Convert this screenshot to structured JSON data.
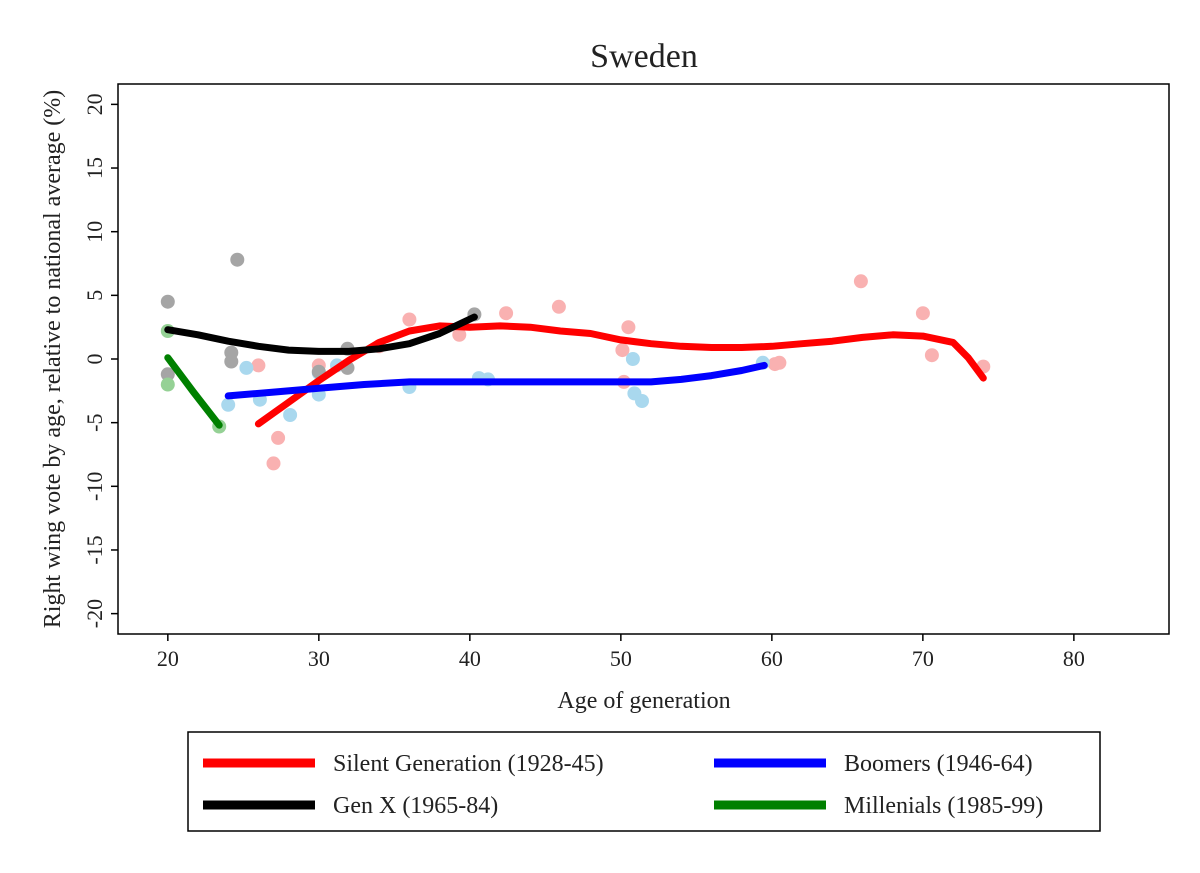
{
  "chart_data": {
    "type": "scatter",
    "title": "Sweden",
    "xlabel": "Age of generation",
    "ylabel": "Right wing vote by age, relative to national average (%)",
    "xlim": [
      16.7,
      86.3
    ],
    "ylim": [
      -21.6,
      21.6
    ],
    "x_ticks": [
      "20",
      "30",
      "40",
      "50",
      "60",
      "70",
      "80"
    ],
    "y_ticks": [
      "-20",
      "-15",
      "-10",
      "-5",
      "0",
      "5",
      "10",
      "15",
      "20"
    ],
    "grid": false,
    "legend_placement": "bottom",
    "series": [
      {
        "name": "Silent Generation (1928-45)",
        "color": "#ff0000",
        "point_color": "#f9b1b1",
        "points": [
          [
            26.0,
            -0.5
          ],
          [
            27.0,
            -8.2
          ],
          [
            27.3,
            -6.2
          ],
          [
            30.0,
            -0.5
          ],
          [
            34.0,
            1.0
          ],
          [
            36.0,
            3.1
          ],
          [
            39.3,
            1.9
          ],
          [
            42.4,
            3.6
          ],
          [
            45.9,
            4.1
          ],
          [
            50.1,
            0.7
          ],
          [
            50.5,
            2.5
          ],
          [
            50.2,
            -1.8
          ],
          [
            60.2,
            -0.4
          ],
          [
            60.5,
            -0.3
          ],
          [
            65.9,
            6.1
          ],
          [
            70.0,
            3.6
          ],
          [
            70.6,
            0.3
          ],
          [
            74.0,
            -0.6
          ]
        ],
        "fit": [
          [
            26.0,
            -5.1
          ],
          [
            28.0,
            -3.4
          ],
          [
            30.0,
            -1.7
          ],
          [
            32.0,
            -0.1
          ],
          [
            34.0,
            1.3
          ],
          [
            36.0,
            2.2
          ],
          [
            38.0,
            2.6
          ],
          [
            40.0,
            2.5
          ],
          [
            42.0,
            2.6
          ],
          [
            44.0,
            2.5
          ],
          [
            46.0,
            2.2
          ],
          [
            48.0,
            2.0
          ],
          [
            50.0,
            1.5
          ],
          [
            52.0,
            1.2
          ],
          [
            54.0,
            1.0
          ],
          [
            56.0,
            0.9
          ],
          [
            58.0,
            0.9
          ],
          [
            60.0,
            1.0
          ],
          [
            62.0,
            1.2
          ],
          [
            64.0,
            1.4
          ],
          [
            66.0,
            1.7
          ],
          [
            68.0,
            1.9
          ],
          [
            70.0,
            1.8
          ],
          [
            72.0,
            1.3
          ],
          [
            73.0,
            0.1
          ],
          [
            74.0,
            -1.5
          ]
        ]
      },
      {
        "name": "Boomers (1946-64)",
        "color": "#0000ff",
        "point_color": "#a9d8ee",
        "points": [
          [
            24.0,
            -3.6
          ],
          [
            25.2,
            -0.7
          ],
          [
            26.1,
            -3.2
          ],
          [
            28.1,
            -4.4
          ],
          [
            30.0,
            -2.8
          ],
          [
            30.0,
            -1.1
          ],
          [
            31.2,
            -0.5
          ],
          [
            36.0,
            -2.2
          ],
          [
            40.6,
            -1.5
          ],
          [
            41.2,
            -1.6
          ],
          [
            50.8,
            0.0
          ],
          [
            50.9,
            -2.7
          ],
          [
            51.4,
            -3.3
          ],
          [
            59.4,
            -0.3
          ]
        ],
        "fit": [
          [
            24.0,
            -2.9
          ],
          [
            27.0,
            -2.6
          ],
          [
            30.0,
            -2.3
          ],
          [
            33.0,
            -2.0
          ],
          [
            36.0,
            -1.8
          ],
          [
            40.0,
            -1.8
          ],
          [
            45.0,
            -1.8
          ],
          [
            50.0,
            -1.8
          ],
          [
            52.0,
            -1.8
          ],
          [
            54.0,
            -1.6
          ],
          [
            56.0,
            -1.3
          ],
          [
            58.0,
            -0.9
          ],
          [
            59.5,
            -0.5
          ]
        ]
      },
      {
        "name": "Gen X (1965-84)",
        "color": "#000000",
        "point_color": "#a5a5a5",
        "points": [
          [
            20.0,
            4.5
          ],
          [
            20.0,
            -1.2
          ],
          [
            24.2,
            0.5
          ],
          [
            24.2,
            -0.2
          ],
          [
            24.6,
            7.8
          ],
          [
            30.0,
            -1.0
          ],
          [
            31.9,
            0.8
          ],
          [
            31.9,
            -0.7
          ],
          [
            40.3,
            3.5
          ]
        ],
        "fit": [
          [
            20.0,
            2.3
          ],
          [
            22.0,
            1.9
          ],
          [
            24.0,
            1.4
          ],
          [
            26.0,
            1.0
          ],
          [
            28.0,
            0.7
          ],
          [
            30.0,
            0.6
          ],
          [
            32.0,
            0.6
          ],
          [
            34.0,
            0.8
          ],
          [
            36.0,
            1.2
          ],
          [
            38.0,
            2.0
          ],
          [
            40.3,
            3.3
          ]
        ]
      },
      {
        "name": "Millenials (1985-99)",
        "color": "#008000",
        "point_color": "#95d195",
        "points": [
          [
            20.0,
            2.2
          ],
          [
            20.0,
            -2.0
          ],
          [
            23.4,
            -5.3
          ]
        ],
        "fit": [
          [
            20.0,
            0.1
          ],
          [
            21.7,
            -2.6
          ],
          [
            23.4,
            -5.2
          ]
        ]
      }
    ]
  }
}
